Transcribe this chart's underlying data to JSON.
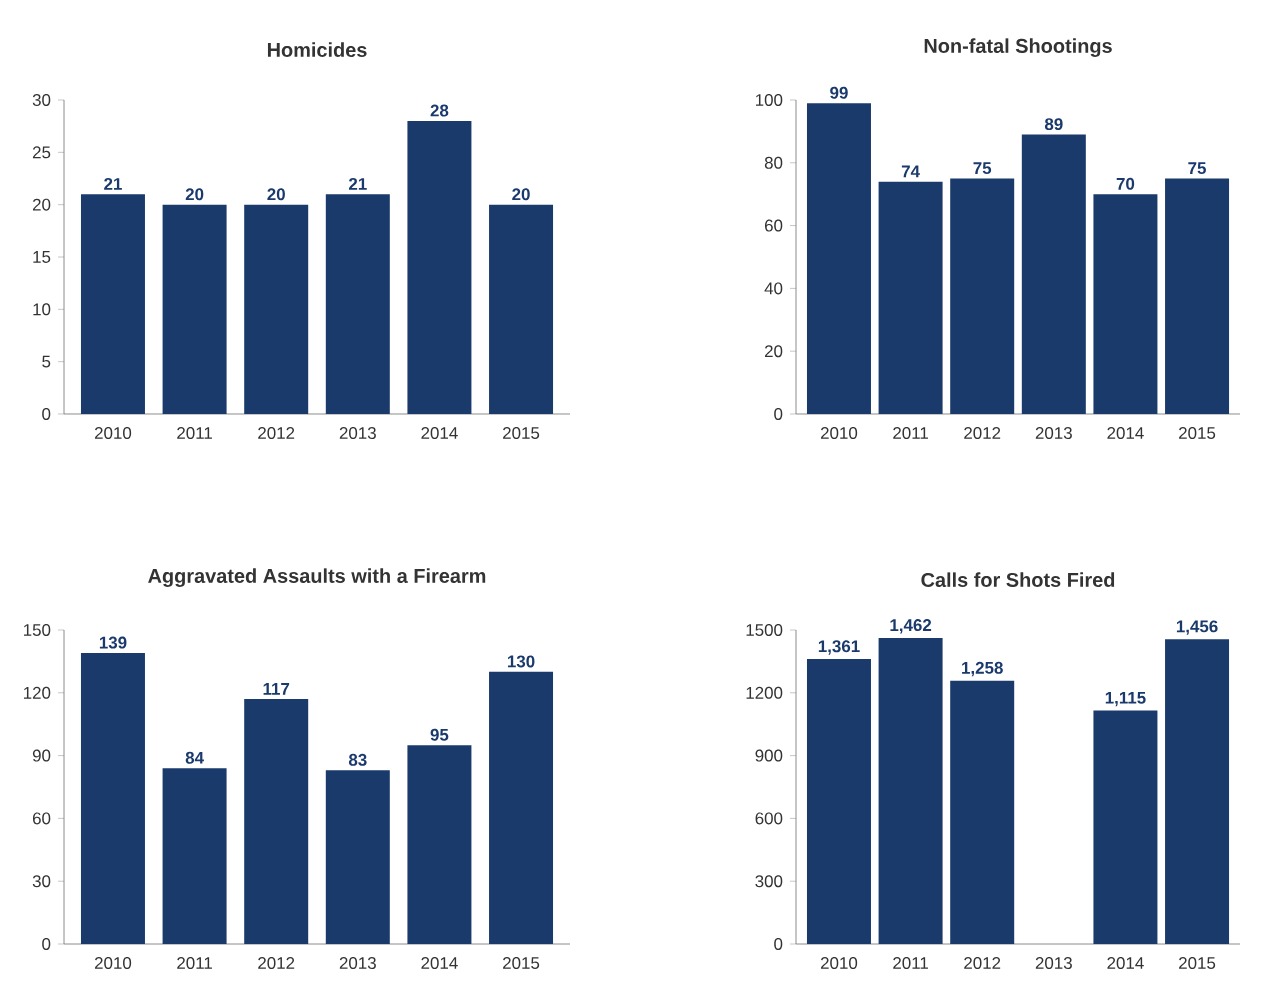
{
  "chart_data": [
    {
      "type": "bar",
      "title": "Homicides",
      "categories": [
        "2010",
        "2011",
        "2012",
        "2013",
        "2014",
        "2015"
      ],
      "values": [
        21,
        20,
        20,
        21,
        28,
        20
      ],
      "color": "#1b3a6c",
      "ylim": [
        0,
        30
      ],
      "yticks": [
        0,
        5,
        10,
        15,
        20,
        25,
        30
      ],
      "data_labels": true,
      "grid": false
    },
    {
      "type": "bar",
      "title": "Non-fatal Shootings",
      "categories": [
        "2010",
        "2011",
        "2012",
        "2013",
        "2014",
        "2015"
      ],
      "values": [
        99,
        74,
        75,
        89,
        70,
        75
      ],
      "color": "#1b3a6c",
      "ylim": [
        0,
        100
      ],
      "yticks": [
        0,
        20,
        40,
        60,
        80,
        100
      ],
      "data_labels": true,
      "grid": false
    },
    {
      "type": "bar",
      "title": "Aggravated Assaults with a Firearm",
      "categories": [
        "2010",
        "2011",
        "2012",
        "2013",
        "2014",
        "2015"
      ],
      "values": [
        139,
        84,
        117,
        83,
        95,
        130
      ],
      "color": "#1b3a6c",
      "ylim": [
        0,
        150
      ],
      "yticks": [
        0,
        30,
        60,
        90,
        120,
        150
      ],
      "data_labels": true,
      "grid": false
    },
    {
      "type": "bar",
      "title": "Calls for Shots Fired",
      "categories": [
        "2010",
        "2011",
        "2012",
        "2013",
        "2014",
        "2015"
      ],
      "values": [
        1361,
        1462,
        1258,
        null,
        1115,
        1456
      ],
      "value_labels": [
        "1,361",
        "1,462",
        "1,258",
        null,
        "1,115",
        "1,456"
      ],
      "color": "#1b3a6c",
      "ylim": [
        0,
        1500
      ],
      "yticks": [
        0,
        300,
        600,
        900,
        1200,
        1500
      ],
      "grid": false
    }
  ]
}
